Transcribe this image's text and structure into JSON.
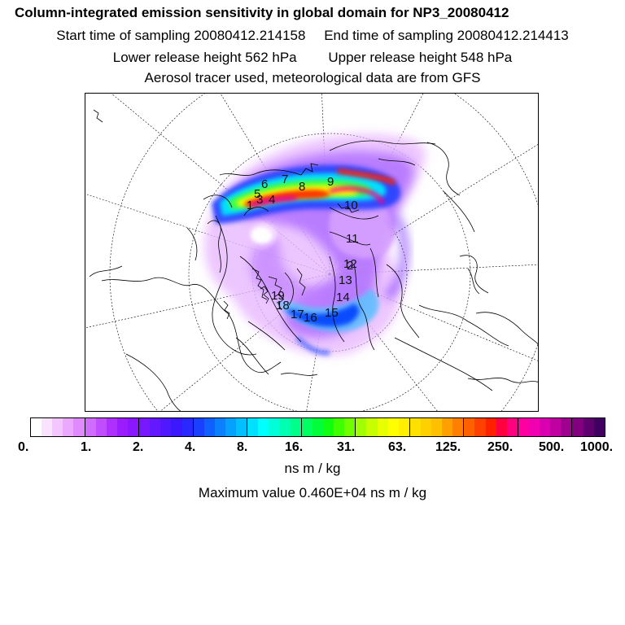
{
  "header": {
    "title": "Column-integrated emission sensitivity in global domain for NP3_20080412",
    "start_time": "Start time of sampling 20080412.214158",
    "end_time": "End time of sampling 20080412.214413",
    "lower_release": "Lower release height  562 hPa",
    "upper_release": "Upper release height  548 hPa",
    "tracer_note": "Aerosol tracer used, meteorological data are from GFS"
  },
  "map": {
    "projection": "north-polar-stereographic",
    "point_labels": [
      "1",
      "2",
      "3",
      "4",
      "5",
      "6",
      "7",
      "8",
      "9",
      "10",
      "11",
      "12",
      "13",
      "14",
      "15",
      "16",
      "17",
      "18",
      "19"
    ]
  },
  "colorbar": {
    "units": "ns m / kg",
    "tick_labels": [
      "0.",
      "1.",
      "2.",
      "4.",
      "8.",
      "16.",
      "31.",
      "63.",
      "125.",
      "250.",
      "500.",
      "1000."
    ],
    "colors": [
      "#ffffff",
      "#f9e3ff",
      "#f3c6ff",
      "#eca8ff",
      "#e08aff",
      "#d06cff",
      "#c04eff",
      "#ae30ff",
      "#9a1cff",
      "#8a18ff",
      "#7818ff",
      "#6418ff",
      "#5018ff",
      "#3c18ff",
      "#2828ff",
      "#1a40ff",
      "#1060ff",
      "#0a80ff",
      "#06a0ff",
      "#02c0ff",
      "#00e0ff",
      "#00ffff",
      "#00ffd8",
      "#00ffb0",
      "#00ff88",
      "#00ff60",
      "#00ff38",
      "#10ff10",
      "#40ff00",
      "#70ff00",
      "#a0ff00",
      "#c8ff00",
      "#e8ff00",
      "#ffff00",
      "#fff000",
      "#ffe000",
      "#ffd000",
      "#ffc000",
      "#ffa000",
      "#ff8000",
      "#ff6000",
      "#ff4000",
      "#ff2000",
      "#ff0040",
      "#ff0080",
      "#ff00a0",
      "#f000b0",
      "#d800b0",
      "#c000a0",
      "#a00090",
      "#800080",
      "#600070",
      "#400060"
    ]
  },
  "max_value": "Maximum value  0.460E+04 ns m / kg"
}
